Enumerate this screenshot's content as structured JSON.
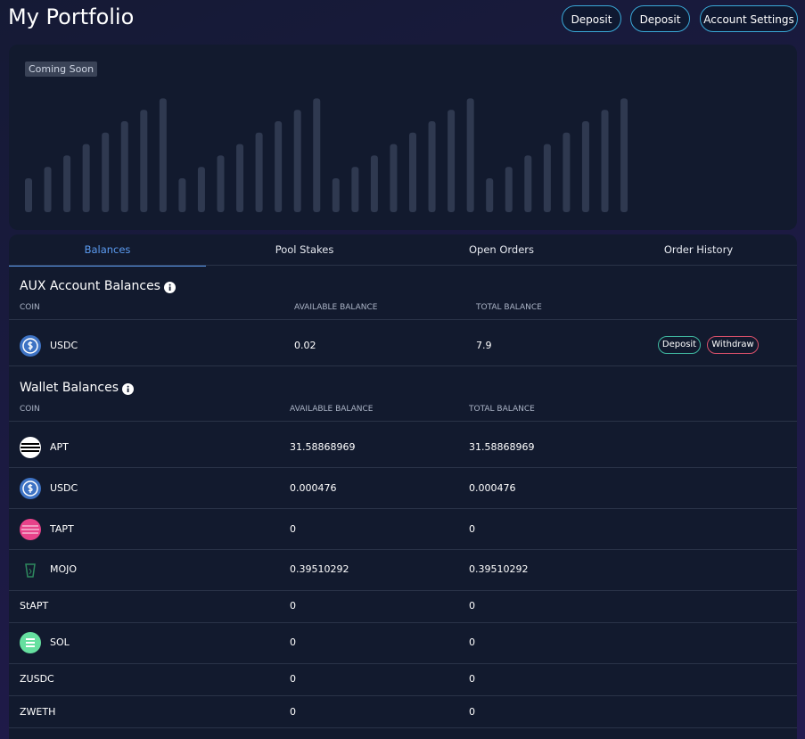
{
  "header": {
    "title": "My Portfolio",
    "buttons": [
      "Deposit",
      "Deposit",
      "Account Settings"
    ]
  },
  "chart_placeholder": {
    "badge": "Coming Soon"
  },
  "tabs": [
    "Balances",
    "Pool Stakes",
    "Open Orders",
    "Order History"
  ],
  "aux": {
    "title": "AUX Account Balances",
    "columns": [
      "COIN",
      "AVAILABLE BALANCE",
      "TOTAL BALANCE"
    ],
    "rows": [
      [
        "USDC",
        "0.02",
        "7.9"
      ]
    ],
    "actions": [
      "Deposit",
      "Withdraw"
    ]
  },
  "wallet": {
    "title": "Wallet Balances",
    "columns": [
      "COIN",
      "AVAILABLE BALANCE",
      "TOTAL BALANCE"
    ],
    "rows": [
      [
        "APT",
        "31.58868969",
        "31.58868969"
      ],
      [
        "USDC",
        "0.000476",
        "0.000476"
      ],
      [
        "TAPT",
        "0",
        "0"
      ],
      [
        "MOJO",
        "0.39510292",
        "0.39510292"
      ],
      [
        "StAPT",
        "0",
        "0"
      ],
      [
        "SOL",
        "0",
        "0"
      ],
      [
        "ZUSDC",
        "0",
        "0"
      ],
      [
        "ZWETH",
        "0",
        "0"
      ]
    ]
  }
}
